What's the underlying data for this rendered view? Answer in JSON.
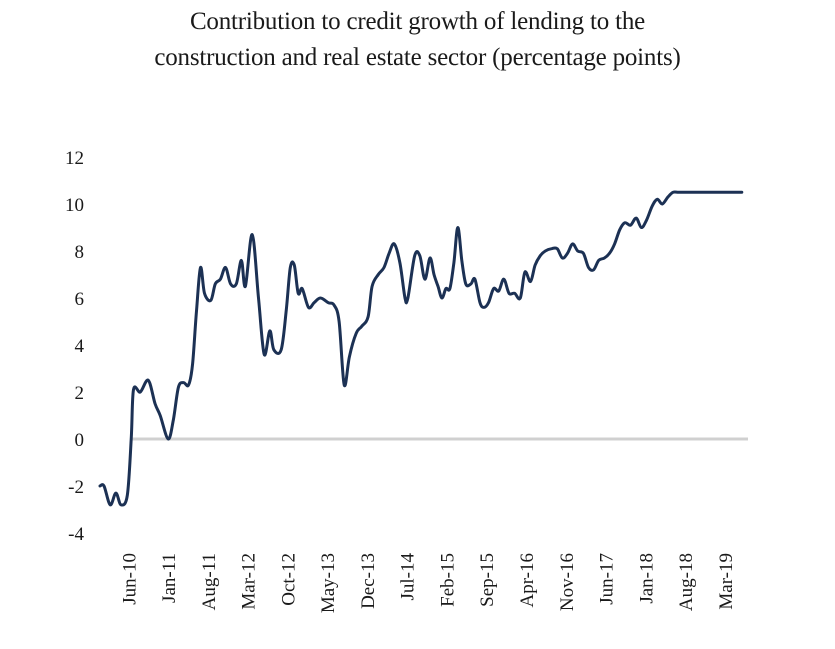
{
  "chart_data": {
    "type": "line",
    "title_lines": [
      "Contribution to credit growth of lending to the",
      "construction and real estate sector (percentage points)"
    ],
    "xlabel": "",
    "ylabel": "",
    "ylim": [
      -4,
      12
    ],
    "yticks": [
      -4,
      -2,
      0,
      2,
      4,
      6,
      8,
      10,
      12
    ],
    "xticks": [
      "Jun-10",
      "Jan-11",
      "Aug-11",
      "Mar-12",
      "Oct-12",
      "May-13",
      "Dec-13",
      "Jul-14",
      "Feb-15",
      "Sep-15",
      "Apr-16",
      "Nov-16",
      "Jun-17",
      "Jan-18",
      "Aug-18",
      "Mar-19"
    ],
    "x_start": "Jan-10",
    "x_end": "Jun-19",
    "zero_line": true,
    "grid": false,
    "legend": "none",
    "series": [
      {
        "name": "Contribution to credit growth (pp)",
        "color": "#1c3154",
        "months_from_start": [
          0,
          0.7,
          1.8,
          2.8,
          3.7,
          4.8,
          5.5,
          5.9,
          7.1,
          8.5,
          9.7,
          10.6,
          12,
          12.9,
          13.8,
          14.7,
          15.6,
          16.3,
          17,
          17.7,
          18.4,
          19.5,
          20.3,
          21.2,
          22.1,
          23,
          24,
          24.9,
          25.6,
          26.8,
          27.9,
          28.9,
          29.9,
          30.6,
          31.9,
          32.8,
          33.5,
          34.2,
          34.9,
          35.6,
          36.7,
          37.7,
          38.8,
          40.2,
          41.2,
          42.1,
          43,
          43.9,
          45.1,
          46.1,
          47.2,
          47.9,
          49,
          50,
          50.9,
          51.8,
          52.8,
          53.7,
          54.2,
          55.4,
          56.3,
          57.2,
          58.1,
          58.8,
          59.5,
          60.2,
          60.9,
          61.6,
          62.3,
          63,
          63.7,
          64.4,
          65.3,
          66,
          66.9,
          67.6,
          68.4,
          69.3,
          70.2,
          71.1,
          72,
          73,
          74,
          74.8,
          75.8,
          76.6,
          77.5,
          78.4,
          79.5,
          80.5,
          81.4,
          82.3,
          83.2,
          84.1,
          85.1,
          86,
          86.9,
          87.8,
          88.8,
          89.7,
          90.6,
          91.5,
          92.4,
          93.4,
          94.4,
          95.3,
          96.2,
          97.2,
          98.1,
          99,
          100,
          100.9,
          101.8,
          102.7,
          103.6,
          104.6,
          105.5,
          106.5,
          107.4,
          108.3,
          109.3,
          110.2,
          111,
          112.2,
          113
        ],
        "values": [
          -2.0,
          -2.0,
          -2.8,
          -2.3,
          -2.8,
          -2.4,
          0.0,
          2.1,
          2.0,
          2.5,
          1.5,
          1.0,
          0.0,
          0.8,
          2.2,
          2.4,
          2.3,
          3.2,
          5.5,
          7.3,
          6.2,
          5.9,
          6.6,
          6.8,
          7.3,
          6.6,
          6.6,
          7.6,
          6.5,
          8.7,
          6.0,
          3.6,
          4.6,
          3.8,
          3.8,
          5.5,
          7.3,
          7.4,
          6.2,
          6.4,
          5.6,
          5.8,
          6.0,
          5.8,
          5.7,
          5.0,
          2.3,
          3.5,
          4.5,
          4.8,
          5.2,
          6.5,
          7.0,
          7.3,
          7.9,
          8.3,
          7.5,
          6.0,
          6.0,
          7.8,
          7.8,
          6.8,
          7.7,
          7.0,
          6.5,
          6.0,
          6.4,
          6.4,
          7.5,
          9.0,
          7.6,
          6.6,
          6.6,
          6.8,
          5.8,
          5.6,
          5.8,
          6.4,
          6.3,
          6.8,
          6.2,
          6.2,
          6.0,
          7.1,
          6.7,
          7.4,
          7.8,
          8.0,
          8.1,
          8.1,
          7.7,
          7.9,
          8.3,
          8.0,
          7.9,
          7.3,
          7.2,
          7.6,
          7.7,
          7.9,
          8.3,
          8.9,
          9.2,
          9.1,
          9.4,
          9.0,
          9.3,
          9.9,
          10.2,
          10.0,
          10.3,
          10.5,
          10.5,
          10.5,
          10.5,
          10.5,
          10.5,
          10.5,
          10.5,
          10.5,
          10.5,
          10.5,
          10.5,
          10.5,
          10.5
        ]
      }
    ]
  }
}
